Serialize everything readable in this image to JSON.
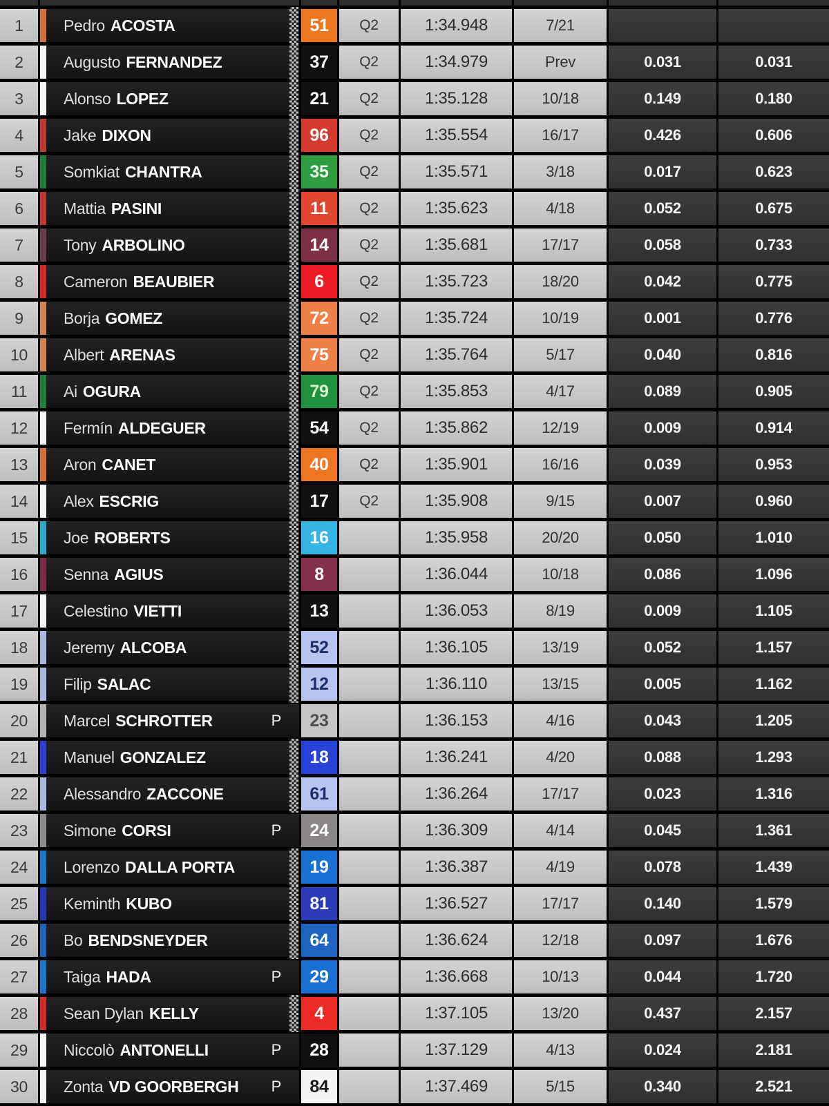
{
  "table": {
    "rows": [
      {
        "pos": "1",
        "first": "Pedro",
        "last": "ACOSTA",
        "p": "",
        "num": "51",
        "session": "Q2",
        "time": "1:34.948",
        "laps": "7/21",
        "gap_prev": "",
        "gap_first": "",
        "accent": "#d4703a",
        "badge_bg": "#ee7722",
        "badge_fg": "#ffffff",
        "checker": true
      },
      {
        "pos": "2",
        "first": "Augusto",
        "last": "FERNANDEZ",
        "p": "",
        "num": "37",
        "session": "Q2",
        "time": "1:34.979",
        "laps": "Prev",
        "gap_prev": "0.031",
        "gap_first": "0.031",
        "accent": "#f5f5f5",
        "badge_bg": "#101010",
        "badge_fg": "#ffffff",
        "checker": true
      },
      {
        "pos": "3",
        "first": "Alonso",
        "last": "LOPEZ",
        "p": "",
        "num": "21",
        "session": "Q2",
        "time": "1:35.128",
        "laps": "10/18",
        "gap_prev": "0.149",
        "gap_first": "0.180",
        "accent": "#f5f5f5",
        "badge_bg": "#101010",
        "badge_fg": "#ffffff",
        "checker": true
      },
      {
        "pos": "4",
        "first": "Jake",
        "last": "DIXON",
        "p": "",
        "num": "96",
        "session": "Q2",
        "time": "1:35.554",
        "laps": "16/17",
        "gap_prev": "0.426",
        "gap_first": "0.606",
        "accent": "#c0392f",
        "badge_bg": "#d53a2e",
        "badge_fg": "#ffffff",
        "checker": true
      },
      {
        "pos": "5",
        "first": "Somkiat",
        "last": "CHANTRA",
        "p": "",
        "num": "35",
        "session": "Q2",
        "time": "1:35.571",
        "laps": "3/18",
        "gap_prev": "0.017",
        "gap_first": "0.623",
        "accent": "#1f7e38",
        "badge_bg": "#2e9e41",
        "badge_fg": "#eaf7e6",
        "checker": true
      },
      {
        "pos": "6",
        "first": "Mattia",
        "last": "PASINI",
        "p": "",
        "num": "11",
        "session": "Q2",
        "time": "1:35.623",
        "laps": "4/18",
        "gap_prev": "0.052",
        "gap_first": "0.675",
        "accent": "#c0392f",
        "badge_bg": "#e1462f",
        "badge_fg": "#ffffff",
        "checker": true
      },
      {
        "pos": "7",
        "first": "Tony",
        "last": "ARBOLINO",
        "p": "",
        "num": "14",
        "session": "Q2",
        "time": "1:35.681",
        "laps": "17/17",
        "gap_prev": "0.058",
        "gap_first": "0.733",
        "accent": "#6d3a4f",
        "badge_bg": "#7d2f45",
        "badge_fg": "#ffffff",
        "checker": true
      },
      {
        "pos": "8",
        "first": "Cameron",
        "last": "BEAUBIER",
        "p": "",
        "num": "6",
        "session": "Q2",
        "time": "1:35.723",
        "laps": "18/20",
        "gap_prev": "0.042",
        "gap_first": "0.775",
        "accent": "#d32b27",
        "badge_bg": "#ed1c24",
        "badge_fg": "#ffffff",
        "checker": true
      },
      {
        "pos": "9",
        "first": "Borja",
        "last": "GOMEZ",
        "p": "",
        "num": "72",
        "session": "Q2",
        "time": "1:35.724",
        "laps": "10/19",
        "gap_prev": "0.001",
        "gap_first": "0.776",
        "accent": "#d4824f",
        "badge_bg": "#ef8046",
        "badge_fg": "#ffffff",
        "checker": true
      },
      {
        "pos": "10",
        "first": "Albert",
        "last": "ARENAS",
        "p": "",
        "num": "75",
        "session": "Q2",
        "time": "1:35.764",
        "laps": "5/17",
        "gap_prev": "0.040",
        "gap_first": "0.816",
        "accent": "#d4824f",
        "badge_bg": "#ef8046",
        "badge_fg": "#ffffff",
        "checker": true
      },
      {
        "pos": "11",
        "first": "Ai",
        "last": "OGURA",
        "p": "",
        "num": "79",
        "session": "Q2",
        "time": "1:35.853",
        "laps": "4/17",
        "gap_prev": "0.089",
        "gap_first": "0.905",
        "accent": "#1f7e38",
        "badge_bg": "#1f9240",
        "badge_fg": "#d8f0d0",
        "checker": true
      },
      {
        "pos": "12",
        "first": "Fermín",
        "last": "ALDEGUER",
        "p": "",
        "num": "54",
        "session": "Q2",
        "time": "1:35.862",
        "laps": "12/19",
        "gap_prev": "0.009",
        "gap_first": "0.914",
        "accent": "#f5f5f5",
        "badge_bg": "#101010",
        "badge_fg": "#ffffff",
        "checker": true
      },
      {
        "pos": "13",
        "first": "Aron",
        "last": "CANET",
        "p": "",
        "num": "40",
        "session": "Q2",
        "time": "1:35.901",
        "laps": "16/16",
        "gap_prev": "0.039",
        "gap_first": "0.953",
        "accent": "#d4703a",
        "badge_bg": "#ee7623",
        "badge_fg": "#ffffff",
        "checker": true
      },
      {
        "pos": "14",
        "first": "Alex",
        "last": "ESCRIG",
        "p": "",
        "num": "17",
        "session": "Q2",
        "time": "1:35.908",
        "laps": "9/15",
        "gap_prev": "0.007",
        "gap_first": "0.960",
        "accent": "#f5f5f5",
        "badge_bg": "#101010",
        "badge_fg": "#ffffff",
        "checker": true
      },
      {
        "pos": "15",
        "first": "Joe",
        "last": "ROBERTS",
        "p": "",
        "num": "16",
        "session": "",
        "time": "1:35.958",
        "laps": "20/20",
        "gap_prev": "0.050",
        "gap_first": "1.010",
        "accent": "#2fa9c9",
        "badge_bg": "#35b5e4",
        "badge_fg": "#ffffff",
        "checker": true
      },
      {
        "pos": "16",
        "first": "Senna",
        "last": "AGIUS",
        "p": "",
        "num": "8",
        "session": "",
        "time": "1:36.044",
        "laps": "10/18",
        "gap_prev": "0.086",
        "gap_first": "1.096",
        "accent": "#7c2a42",
        "badge_bg": "#85304b",
        "badge_fg": "#ffffff",
        "checker": true
      },
      {
        "pos": "17",
        "first": "Celestino",
        "last": "VIETTI",
        "p": "",
        "num": "13",
        "session": "",
        "time": "1:36.053",
        "laps": "8/19",
        "gap_prev": "0.009",
        "gap_first": "1.105",
        "accent": "#f5f5f5",
        "badge_bg": "#101010",
        "badge_fg": "#ffffff",
        "checker": true
      },
      {
        "pos": "18",
        "first": "Jeremy",
        "last": "ALCOBA",
        "p": "",
        "num": "52",
        "session": "",
        "time": "1:36.105",
        "laps": "13/19",
        "gap_prev": "0.052",
        "gap_first": "1.157",
        "accent": "#a9b6e6",
        "badge_bg": "#b8c4ef",
        "badge_fg": "#1c2f6e",
        "checker": true
      },
      {
        "pos": "19",
        "first": "Filip",
        "last": "SALAC",
        "p": "",
        "num": "12",
        "session": "",
        "time": "1:36.110",
        "laps": "13/15",
        "gap_prev": "0.005",
        "gap_first": "1.162",
        "accent": "#a9b6e6",
        "badge_bg": "#b8c4ef",
        "badge_fg": "#1c2f6e",
        "checker": true
      },
      {
        "pos": "20",
        "first": "Marcel",
        "last": "SCHROTTER",
        "p": "P",
        "num": "23",
        "session": "",
        "time": "1:36.153",
        "laps": "4/16",
        "gap_prev": "0.043",
        "gap_first": "1.205",
        "accent": "#b3b3b3",
        "badge_bg": "#c6c6c6",
        "badge_fg": "#4f4f4f",
        "checker": false
      },
      {
        "pos": "21",
        "first": "Manuel",
        "last": "GONZALEZ",
        "p": "",
        "num": "18",
        "session": "",
        "time": "1:36.241",
        "laps": "4/20",
        "gap_prev": "0.088",
        "gap_first": "1.293",
        "accent": "#2b3fd0",
        "badge_bg": "#2742d6",
        "badge_fg": "#ffffff",
        "checker": true
      },
      {
        "pos": "22",
        "first": "Alessandro",
        "last": "ZACCONE",
        "p": "",
        "num": "61",
        "session": "",
        "time": "1:36.264",
        "laps": "17/17",
        "gap_prev": "0.023",
        "gap_first": "1.316",
        "accent": "#a9b6e6",
        "badge_bg": "#b8c4ef",
        "badge_fg": "#1c2f6e",
        "checker": true
      },
      {
        "pos": "23",
        "first": "Simone",
        "last": "CORSI",
        "p": "P",
        "num": "24",
        "session": "",
        "time": "1:36.309",
        "laps": "4/14",
        "gap_prev": "0.045",
        "gap_first": "1.361",
        "accent": "#8c8c8c",
        "badge_bg": "#8b8787",
        "badge_fg": "#ffffff",
        "checker": false
      },
      {
        "pos": "24",
        "first": "Lorenzo",
        "last": "DALLA PORTA",
        "p": "",
        "num": "19",
        "session": "",
        "time": "1:36.387",
        "laps": "4/19",
        "gap_prev": "0.078",
        "gap_first": "1.439",
        "accent": "#1e73cb",
        "badge_bg": "#1871d2",
        "badge_fg": "#ffffff",
        "checker": true
      },
      {
        "pos": "25",
        "first": "Keminth",
        "last": "KUBO",
        "p": "",
        "num": "81",
        "session": "",
        "time": "1:36.527",
        "laps": "17/17",
        "gap_prev": "0.140",
        "gap_first": "1.579",
        "accent": "#2737b2",
        "badge_bg": "#2c3cb8",
        "badge_fg": "#ffffff",
        "checker": true
      },
      {
        "pos": "26",
        "first": "Bo",
        "last": "BENDSNEYDER",
        "p": "",
        "num": "64",
        "session": "",
        "time": "1:36.624",
        "laps": "12/18",
        "gap_prev": "0.097",
        "gap_first": "1.676",
        "accent": "#1d64ba",
        "badge_bg": "#1c64c0",
        "badge_fg": "#ffffff",
        "checker": true
      },
      {
        "pos": "27",
        "first": "Taiga",
        "last": "HADA",
        "p": "P",
        "num": "29",
        "session": "",
        "time": "1:36.668",
        "laps": "10/13",
        "gap_prev": "0.044",
        "gap_first": "1.720",
        "accent": "#1e73cb",
        "badge_bg": "#1871d2",
        "badge_fg": "#ffffff",
        "checker": false
      },
      {
        "pos": "28",
        "first": "Sean Dylan",
        "last": "KELLY",
        "p": "",
        "num": "4",
        "session": "",
        "time": "1:37.105",
        "laps": "13/20",
        "gap_prev": "0.437",
        "gap_first": "2.157",
        "accent": "#d32b27",
        "badge_bg": "#ea2b26",
        "badge_fg": "#ffffff",
        "checker": true
      },
      {
        "pos": "29",
        "first": "Niccolò",
        "last": "ANTONELLI",
        "p": "P",
        "num": "28",
        "session": "",
        "time": "1:37.129",
        "laps": "4/13",
        "gap_prev": "0.024",
        "gap_first": "2.181",
        "accent": "#f5f5f5",
        "badge_bg": "#101010",
        "badge_fg": "#ffffff",
        "checker": false
      },
      {
        "pos": "30",
        "first": "Zonta",
        "last": "VD GOORBERGH",
        "p": "P",
        "num": "84",
        "session": "",
        "time": "1:37.469",
        "laps": "5/15",
        "gap_prev": "0.340",
        "gap_first": "2.521",
        "accent": "#f5f5f5",
        "badge_bg": "#f5f5f5",
        "badge_fg": "#1a1a1a",
        "checker": false
      }
    ]
  },
  "colors": {
    "row_dark_bg": "#1b1b1b",
    "cell_light_bg": "#c9c9c9",
    "gap_cell_bg": "#363636",
    "separator": "#000000",
    "header_partial_bg": "#2d2d2d"
  }
}
